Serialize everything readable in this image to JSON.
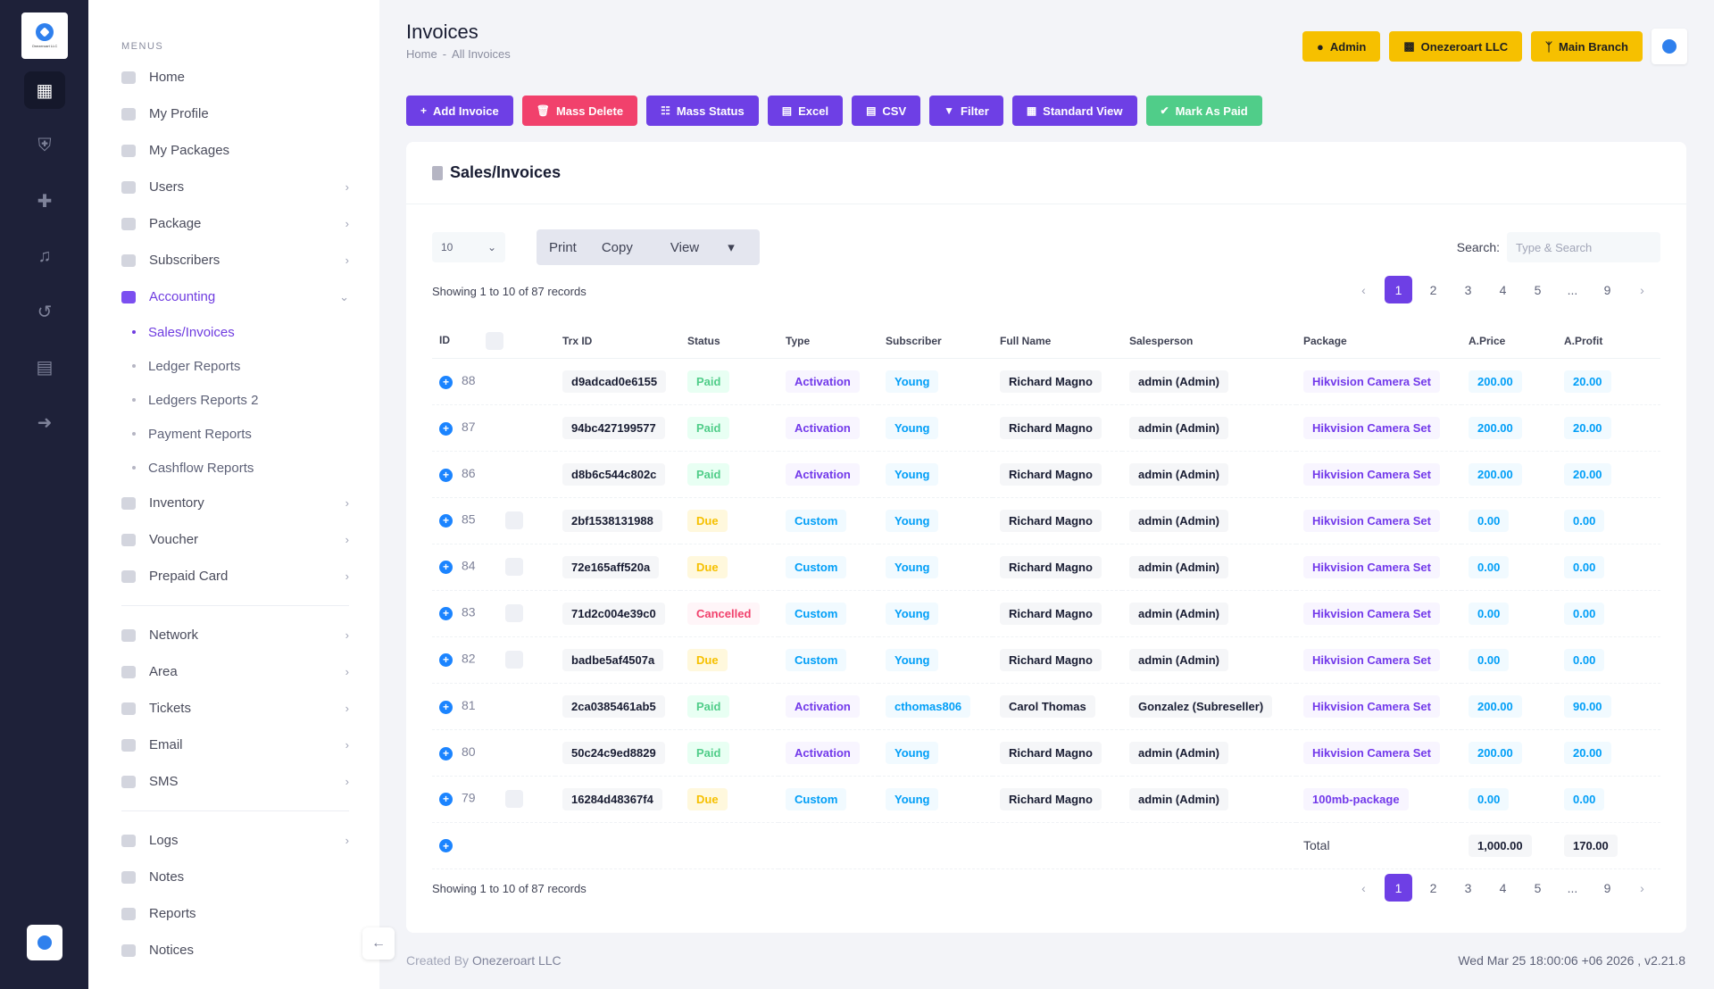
{
  "brand": {
    "logo_text": "Onezeroart LLC"
  },
  "sidebar": {
    "section_label": "MENUS",
    "items": [
      {
        "label": "Home",
        "chevron": false
      },
      {
        "label": "My Profile",
        "chevron": false
      },
      {
        "label": "My Packages",
        "chevron": false
      },
      {
        "label": "Users",
        "chevron": true
      },
      {
        "label": "Package",
        "chevron": true
      },
      {
        "label": "Subscribers",
        "chevron": true
      },
      {
        "label": "Accounting",
        "chevron": true,
        "active": true
      },
      {
        "label": "Inventory",
        "chevron": true
      },
      {
        "label": "Voucher",
        "chevron": true
      },
      {
        "label": "Prepaid Card",
        "chevron": true
      },
      {
        "label": "Network",
        "chevron": true
      },
      {
        "label": "Area",
        "chevron": true
      },
      {
        "label": "Tickets",
        "chevron": true
      },
      {
        "label": "Email",
        "chevron": true
      },
      {
        "label": "SMS",
        "chevron": true
      },
      {
        "label": "Logs",
        "chevron": true
      },
      {
        "label": "Notes",
        "chevron": false
      },
      {
        "label": "Reports",
        "chevron": false
      },
      {
        "label": "Notices",
        "chevron": false
      }
    ],
    "accounting_sub": [
      "Sales/Invoices",
      "Ledger Reports",
      "Ledgers Reports 2",
      "Payment Reports",
      "Cashflow Reports"
    ]
  },
  "header": {
    "title": "Invoices",
    "breadcrumb": [
      "Home",
      "All Invoices"
    ],
    "breadcrumb_sep": "-",
    "badges": [
      "Admin",
      "Onezeroart LLC",
      "Main Branch"
    ]
  },
  "toolbar": [
    "Add Invoice",
    "Mass Delete",
    "Mass Status",
    "Excel",
    "CSV",
    "Filter",
    "Standard View",
    "Mark As Paid"
  ],
  "card": {
    "title": "Sales/Invoices",
    "page_length": "10",
    "buttons": [
      "Print",
      "Copy",
      "View"
    ],
    "search_label": "Search:",
    "search_placeholder": "Type & Search",
    "showing": "Showing 1 to 10 of 87 records",
    "pages": [
      "1",
      "2",
      "3",
      "4",
      "5",
      "...",
      "9"
    ],
    "columns": [
      "ID",
      "Trx ID",
      "Status",
      "Type",
      "Subscriber",
      "Full Name",
      "Salesperson",
      "Package",
      "A.Price",
      "A.Profit"
    ],
    "rows": [
      {
        "id": "88",
        "trx": "d9adcad0e6155",
        "status": "Paid",
        "type": "Activation",
        "subscriber": "Young",
        "name": "Richard Magno",
        "sales": "admin (Admin)",
        "package": "Hikvision Camera Set",
        "price": "200.00",
        "profit": "20.00",
        "chk": false
      },
      {
        "id": "87",
        "trx": "94bc427199577",
        "status": "Paid",
        "type": "Activation",
        "subscriber": "Young",
        "name": "Richard Magno",
        "sales": "admin (Admin)",
        "package": "Hikvision Camera Set",
        "price": "200.00",
        "profit": "20.00",
        "chk": false
      },
      {
        "id": "86",
        "trx": "d8b6c544c802c",
        "status": "Paid",
        "type": "Activation",
        "subscriber": "Young",
        "name": "Richard Magno",
        "sales": "admin (Admin)",
        "package": "Hikvision Camera Set",
        "price": "200.00",
        "profit": "20.00",
        "chk": false
      },
      {
        "id": "85",
        "trx": "2bf1538131988",
        "status": "Due",
        "type": "Custom",
        "subscriber": "Young",
        "name": "Richard Magno",
        "sales": "admin (Admin)",
        "package": "Hikvision Camera Set",
        "price": "0.00",
        "profit": "0.00",
        "chk": true
      },
      {
        "id": "84",
        "trx": "72e165aff520a",
        "status": "Due",
        "type": "Custom",
        "subscriber": "Young",
        "name": "Richard Magno",
        "sales": "admin (Admin)",
        "package": "Hikvision Camera Set",
        "price": "0.00",
        "profit": "0.00",
        "chk": true
      },
      {
        "id": "83",
        "trx": "71d2c004e39c0",
        "status": "Cancelled",
        "type": "Custom",
        "subscriber": "Young",
        "name": "Richard Magno",
        "sales": "admin (Admin)",
        "package": "Hikvision Camera Set",
        "price": "0.00",
        "profit": "0.00",
        "chk": true
      },
      {
        "id": "82",
        "trx": "badbe5af4507a",
        "status": "Due",
        "type": "Custom",
        "subscriber": "Young",
        "name": "Richard Magno",
        "sales": "admin (Admin)",
        "package": "Hikvision Camera Set",
        "price": "0.00",
        "profit": "0.00",
        "chk": true
      },
      {
        "id": "81",
        "trx": "2ca0385461ab5",
        "status": "Paid",
        "type": "Activation",
        "subscriber": "cthomas806",
        "name": "Carol Thomas",
        "sales": "Gonzalez (Subreseller)",
        "package": "Hikvision Camera Set",
        "price": "200.00",
        "profit": "90.00",
        "chk": false
      },
      {
        "id": "80",
        "trx": "50c24c9ed8829",
        "status": "Paid",
        "type": "Activation",
        "subscriber": "Young",
        "name": "Richard Magno",
        "sales": "admin (Admin)",
        "package": "Hikvision Camera Set",
        "price": "200.00",
        "profit": "20.00",
        "chk": false
      },
      {
        "id": "79",
        "trx": "16284d48367f4",
        "status": "Due",
        "type": "Custom",
        "subscriber": "Young",
        "name": "Richard Magno",
        "sales": "admin (Admin)",
        "package": "100mb-package",
        "price": "0.00",
        "profit": "0.00",
        "chk": true
      }
    ],
    "total_label": "Total",
    "total_price": "1,000.00",
    "total_profit": "170.00"
  },
  "footer": {
    "created_by": "Created By",
    "company": "Onezeroart LLC",
    "datetime": "Wed Mar 25 18:00:06 +06 2026 ,",
    "version": "v2.21.8"
  }
}
